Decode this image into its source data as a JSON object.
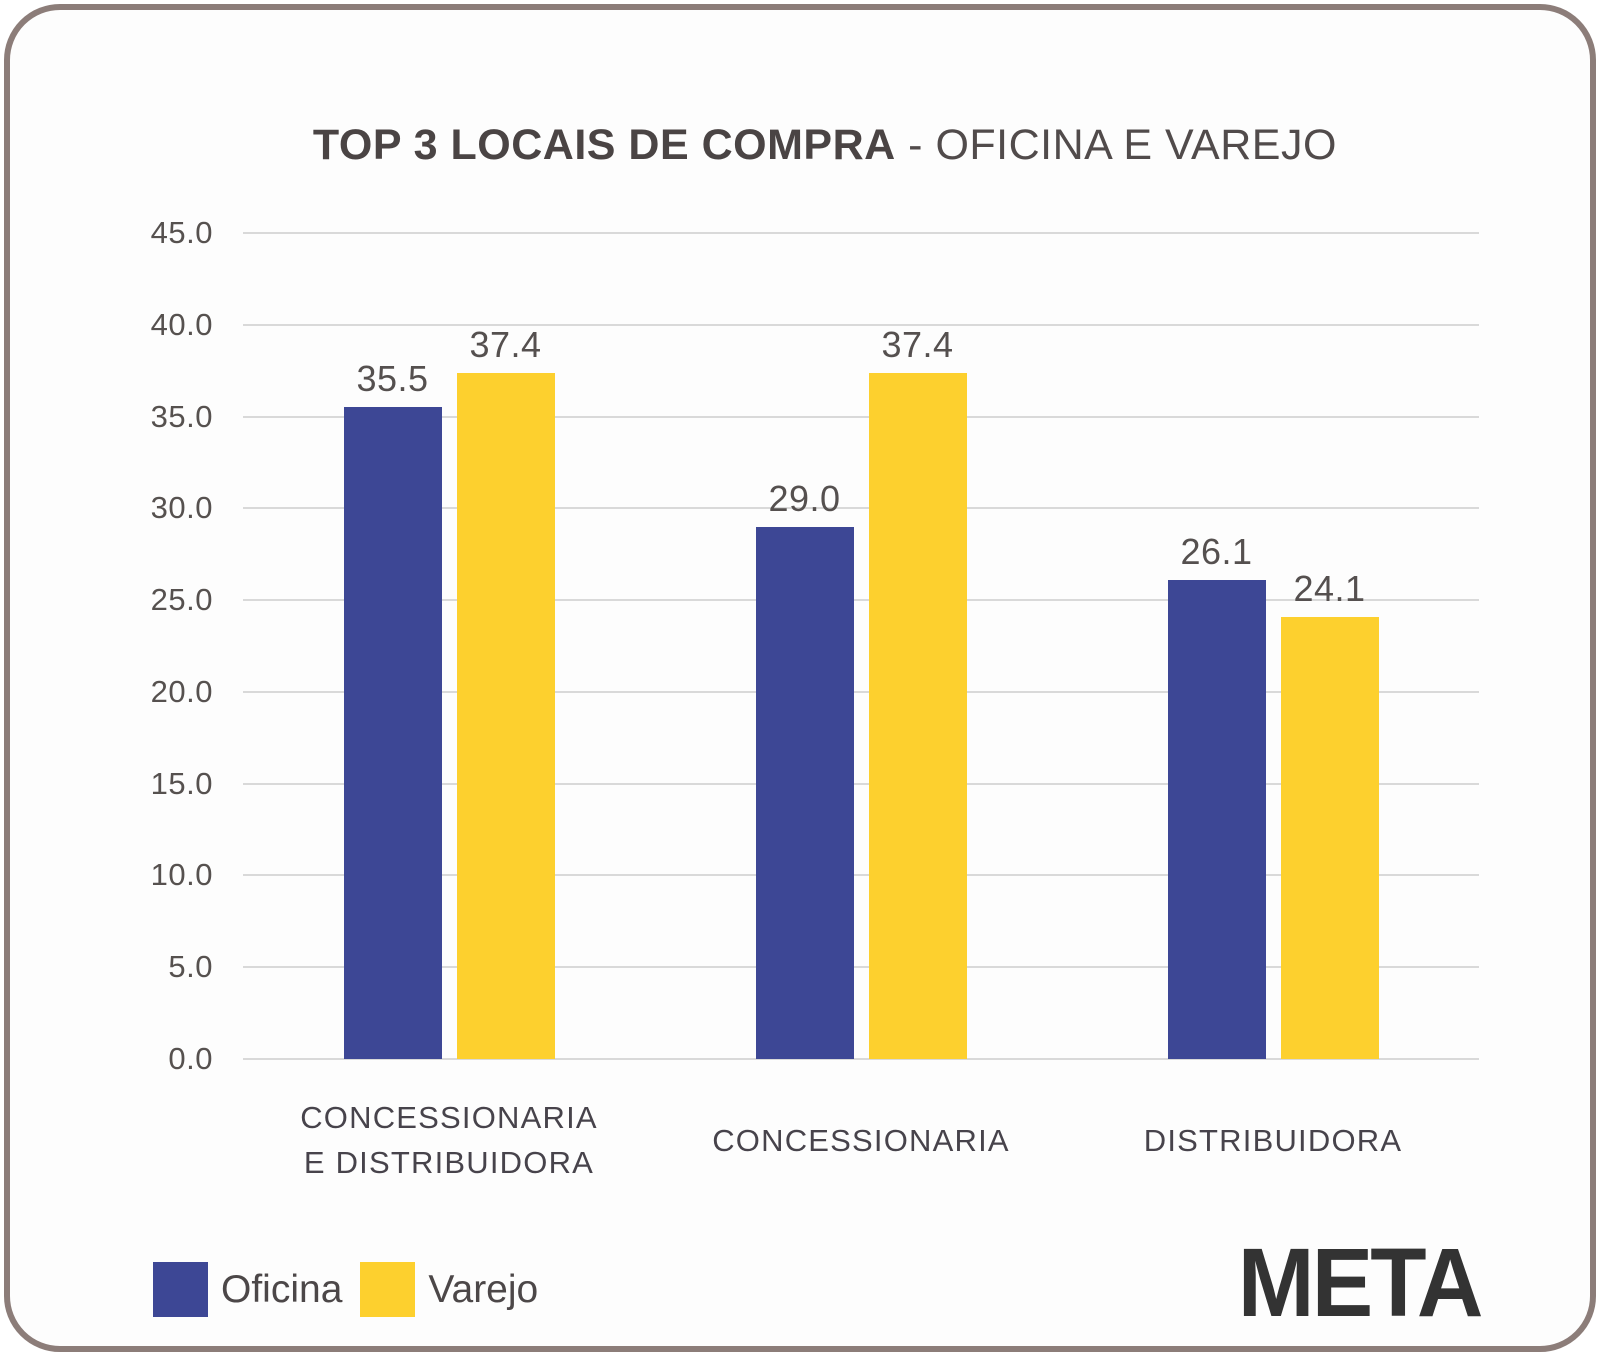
{
  "header": {
    "title_bold": "TOP 3 LOCAIS DE COMPRA",
    "title_rest": " - OFICINA E VAREJO"
  },
  "chart_data": {
    "type": "bar",
    "title": "TOP 3 LOCAIS DE COMPRA - OFICINA E VAREJO",
    "categories": [
      "CONCESSIONARIA\nE DISTRIBUIDORA",
      "CONCESSIONARIA",
      "DISTRIBUIDORA"
    ],
    "series": [
      {
        "name": "Oficina",
        "color": "#3d4795",
        "values": [
          35.5,
          29.0,
          26.1
        ]
      },
      {
        "name": "Varejo",
        "color": "#fdd02e",
        "values": [
          37.4,
          37.4,
          24.1
        ]
      }
    ],
    "xlabel": "",
    "ylabel": "",
    "ylim": [
      0,
      45
    ],
    "ytick_step": 5,
    "yticks": [
      "45.0",
      "40.0",
      "35.0",
      "30.0",
      "25.0",
      "20.0",
      "15.0",
      "10.0",
      "5.0",
      "0.0"
    ],
    "grid": true,
    "value_labels_shown": true,
    "value_label_decimals": 1,
    "legend_position": "bottom-left"
  },
  "legend": {
    "items": [
      {
        "label": "Oficina",
        "color": "#3d4795"
      },
      {
        "label": "Varejo",
        "color": "#fdd02e"
      }
    ]
  },
  "logo": {
    "text": "META"
  },
  "colors": {
    "bar_oficina": "#3d4795",
    "bar_varejo": "#fdd02e",
    "card_border": "#8c7d79",
    "card_bg": "#fdfdfd",
    "gridline": "#d9d9d9",
    "title_text": "#4a4444",
    "axis_text": "#56514f",
    "category_text": "#47434b",
    "legend_text": "#4c4748",
    "logo_text": "#333333"
  }
}
